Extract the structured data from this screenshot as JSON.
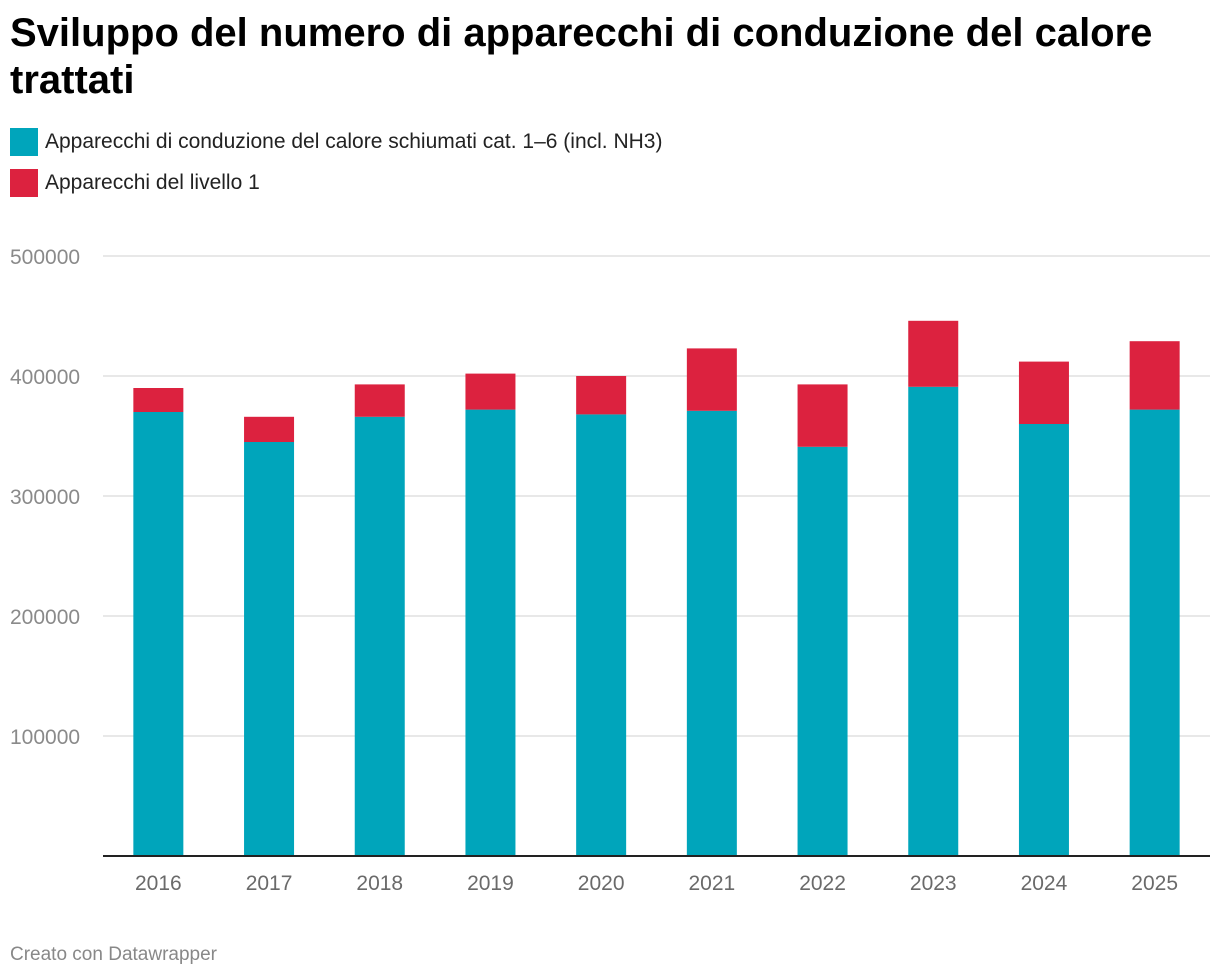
{
  "title": "Sviluppo del numero di apparecchi di conduzione del calore trattati",
  "footer": "Creato con Datawrapper",
  "colors": {
    "series1": "#00a5bb",
    "series2": "#dc223f",
    "grid": "#e0e0e0",
    "axis": "#222222"
  },
  "chart_data": {
    "type": "bar",
    "stacked": true,
    "title": "Sviluppo del numero di apparecchi di conduzione del calore trattati",
    "categories": [
      "2016",
      "2017",
      "2018",
      "2019",
      "2020",
      "2021",
      "2022",
      "2023",
      "2024",
      "2025"
    ],
    "series": [
      {
        "name": "Apparecchi di conduzione del calore schiumati cat. 1–6 (incl. NH3)",
        "color": "#00a5bb",
        "values": [
          370000,
          345000,
          366000,
          372000,
          368000,
          371000,
          341000,
          391000,
          360000,
          372000
        ]
      },
      {
        "name": "Apparecchi del livello 1",
        "color": "#dc223f",
        "values": [
          20000,
          21000,
          27000,
          30000,
          32000,
          52000,
          52000,
          55000,
          52000,
          57000
        ]
      }
    ],
    "ylim": [
      0,
      500000
    ],
    "yticks": [
      "100000",
      "200000",
      "300000",
      "400000",
      "500000"
    ],
    "grid": true,
    "legend_position": "top-left"
  }
}
